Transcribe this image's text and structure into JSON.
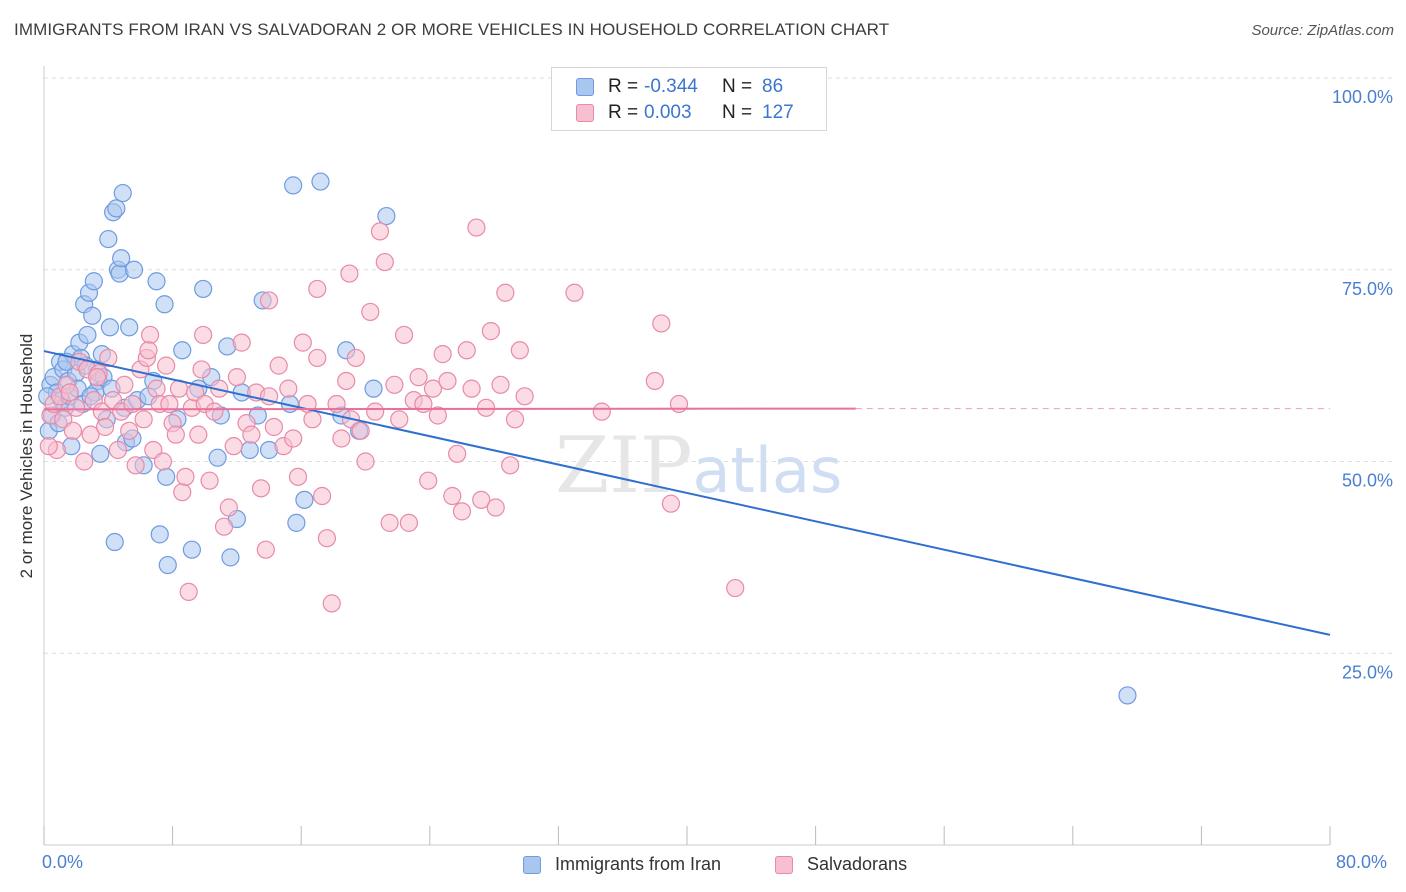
{
  "title": "IMMIGRANTS FROM IRAN VS SALVADORAN 2 OR MORE VEHICLES IN HOUSEHOLD CORRELATION CHART",
  "source": "Source: ZipAtlas.com",
  "watermark": "ZIPatlas",
  "legend_top": {
    "rows": [
      {
        "r_label": "R =",
        "r_value": "-0.344",
        "n_label": "N =",
        "n_value": "86",
        "color": "#a9c6ef",
        "border": "#6f9be0"
      },
      {
        "r_label": "R =",
        "r_value": "0.003",
        "n_label": "N =",
        "n_value": "127",
        "color": "#f7bfd0",
        "border": "#e88aa8"
      }
    ]
  },
  "legend_bottom": [
    {
      "label": "Immigrants from Iran",
      "color": "#a9c6ef",
      "border": "#6f9be0"
    },
    {
      "label": "Salvadorans",
      "color": "#f7bfd0",
      "border": "#e88aa8"
    }
  ],
  "chart_data": {
    "type": "scatter",
    "title": "IMMIGRANTS FROM IRAN VS SALVADORAN 2 OR MORE VEHICLES IN HOUSEHOLD CORRELATION CHART",
    "xlabel": "",
    "ylabel": "2 or more Vehicles in Household",
    "xlim": [
      0,
      80
    ],
    "ylim": [
      0,
      100
    ],
    "x_tick_labels": [
      "0.0%",
      "80.0%"
    ],
    "y_ticks": [
      25,
      50,
      75,
      100
    ],
    "y_tick_labels": [
      "25.0%",
      "50.0%",
      "75.0%",
      "100.0%"
    ],
    "grid": true,
    "legend_position": "top-center",
    "series": [
      {
        "name": "Immigrants from Iran",
        "color": "#6f9be0",
        "fill": "#a9c6ef",
        "trend": {
          "x": [
            0,
            80
          ],
          "y": [
            64.4,
            27.4
          ],
          "color": "#2f6fd0",
          "dashed_after": null
        },
        "points": [
          [
            0.3,
            54.0
          ],
          [
            0.4,
            60.0
          ],
          [
            0.5,
            56.0
          ],
          [
            0.6,
            61.0
          ],
          [
            0.8,
            59.0
          ],
          [
            1.0,
            63.0
          ],
          [
            1.1,
            58.0
          ],
          [
            1.2,
            62.0
          ],
          [
            1.3,
            57.0
          ],
          [
            1.5,
            60.5
          ],
          [
            1.6,
            58.5
          ],
          [
            1.8,
            64.0
          ],
          [
            2.0,
            61.5
          ],
          [
            2.1,
            59.5
          ],
          [
            2.2,
            65.5
          ],
          [
            2.3,
            63.5
          ],
          [
            2.4,
            57.5
          ],
          [
            2.5,
            70.5
          ],
          [
            2.7,
            66.5
          ],
          [
            2.8,
            72.0
          ],
          [
            3.0,
            69.0
          ],
          [
            3.1,
            73.5
          ],
          [
            3.3,
            62.0
          ],
          [
            3.4,
            60.5
          ],
          [
            3.6,
            64.0
          ],
          [
            3.7,
            61.0
          ],
          [
            3.9,
            55.5
          ],
          [
            4.0,
            79.0
          ],
          [
            4.1,
            67.5
          ],
          [
            4.3,
            82.5
          ],
          [
            4.5,
            83.0
          ],
          [
            4.6,
            75.0
          ],
          [
            4.7,
            74.5
          ],
          [
            4.8,
            76.5
          ],
          [
            4.9,
            85.0
          ],
          [
            5.0,
            57.0
          ],
          [
            5.1,
            52.5
          ],
          [
            5.3,
            67.5
          ],
          [
            5.5,
            53.0
          ],
          [
            5.6,
            75.0
          ],
          [
            6.2,
            49.5
          ],
          [
            6.8,
            60.5
          ],
          [
            7.0,
            73.5
          ],
          [
            7.2,
            40.5
          ],
          [
            7.5,
            70.5
          ],
          [
            7.6,
            48.0
          ],
          [
            7.7,
            36.5
          ],
          [
            8.3,
            55.5
          ],
          [
            8.6,
            64.5
          ],
          [
            9.2,
            38.5
          ],
          [
            9.6,
            59.5
          ],
          [
            9.9,
            72.5
          ],
          [
            10.4,
            61.0
          ],
          [
            10.8,
            50.5
          ],
          [
            11.0,
            56.0
          ],
          [
            11.4,
            65.0
          ],
          [
            11.6,
            37.5
          ],
          [
            12.0,
            42.5
          ],
          [
            12.3,
            59.0
          ],
          [
            12.8,
            51.5
          ],
          [
            13.3,
            56.0
          ],
          [
            13.6,
            71.0
          ],
          [
            14.0,
            51.5
          ],
          [
            15.3,
            57.5
          ],
          [
            15.5,
            86.0
          ],
          [
            15.7,
            42.0
          ],
          [
            16.2,
            45.0
          ],
          [
            17.2,
            86.5
          ],
          [
            18.5,
            56.0
          ],
          [
            18.8,
            64.5
          ],
          [
            19.6,
            54.0
          ],
          [
            20.5,
            59.5
          ],
          [
            21.3,
            82.0
          ],
          [
            67.4,
            19.5
          ],
          [
            0.2,
            58.5
          ],
          [
            1.4,
            63.0
          ],
          [
            0.9,
            55.0
          ],
          [
            3.2,
            59.0
          ],
          [
            2.6,
            62.5
          ],
          [
            1.7,
            52.0
          ],
          [
            4.2,
            59.5
          ],
          [
            5.8,
            58.0
          ],
          [
            6.5,
            58.5
          ],
          [
            4.4,
            39.5
          ],
          [
            3.5,
            51.0
          ],
          [
            2.9,
            58.5
          ]
        ]
      },
      {
        "name": "Salvadorans",
        "color": "#e88aa8",
        "fill": "#f7bfd0",
        "trend": {
          "x": [
            0,
            50.5
          ],
          "y": [
            56.8,
            56.9
          ],
          "color": "#e8709b",
          "dashed_to": 80
        },
        "points": [
          [
            0.4,
            56.0
          ],
          [
            0.6,
            57.5
          ],
          [
            0.8,
            51.5
          ],
          [
            1.0,
            58.5
          ],
          [
            1.2,
            55.5
          ],
          [
            1.4,
            60.0
          ],
          [
            1.6,
            59.0
          ],
          [
            1.8,
            54.0
          ],
          [
            2.0,
            57.0
          ],
          [
            2.2,
            63.0
          ],
          [
            2.5,
            50.0
          ],
          [
            2.7,
            62.0
          ],
          [
            2.9,
            53.5
          ],
          [
            3.1,
            58.0
          ],
          [
            3.4,
            61.5
          ],
          [
            3.6,
            56.5
          ],
          [
            3.8,
            54.5
          ],
          [
            4.0,
            63.5
          ],
          [
            4.3,
            58.0
          ],
          [
            4.6,
            51.5
          ],
          [
            4.8,
            56.5
          ],
          [
            5.0,
            60.0
          ],
          [
            5.3,
            54.0
          ],
          [
            5.5,
            57.5
          ],
          [
            5.7,
            49.5
          ],
          [
            6.0,
            62.0
          ],
          [
            6.2,
            55.5
          ],
          [
            6.4,
            63.5
          ],
          [
            6.6,
            66.5
          ],
          [
            6.8,
            51.5
          ],
          [
            7.0,
            59.5
          ],
          [
            7.2,
            57.5
          ],
          [
            7.4,
            50.0
          ],
          [
            7.6,
            62.5
          ],
          [
            7.8,
            57.5
          ],
          [
            8.0,
            55.0
          ],
          [
            8.2,
            53.5
          ],
          [
            8.4,
            59.5
          ],
          [
            8.6,
            46.0
          ],
          [
            8.8,
            48.0
          ],
          [
            9.0,
            33.0
          ],
          [
            9.2,
            57.0
          ],
          [
            9.4,
            59.0
          ],
          [
            9.6,
            53.5
          ],
          [
            9.8,
            62.0
          ],
          [
            10.0,
            57.5
          ],
          [
            10.3,
            47.5
          ],
          [
            10.6,
            56.5
          ],
          [
            10.9,
            59.5
          ],
          [
            11.2,
            41.5
          ],
          [
            11.5,
            44.0
          ],
          [
            11.8,
            52.0
          ],
          [
            12.0,
            61.0
          ],
          [
            12.3,
            65.5
          ],
          [
            12.6,
            55.0
          ],
          [
            12.9,
            53.5
          ],
          [
            13.2,
            59.0
          ],
          [
            13.5,
            46.5
          ],
          [
            13.8,
            38.5
          ],
          [
            14.0,
            58.5
          ],
          [
            14.3,
            54.5
          ],
          [
            14.6,
            62.5
          ],
          [
            14.9,
            52.0
          ],
          [
            15.2,
            59.5
          ],
          [
            15.5,
            53.0
          ],
          [
            15.8,
            48.0
          ],
          [
            16.1,
            65.5
          ],
          [
            16.4,
            57.5
          ],
          [
            16.7,
            55.5
          ],
          [
            17.0,
            63.5
          ],
          [
            17.3,
            45.5
          ],
          [
            17.6,
            40.0
          ],
          [
            17.9,
            31.5
          ],
          [
            18.2,
            57.5
          ],
          [
            18.5,
            53.0
          ],
          [
            18.8,
            60.5
          ],
          [
            19.1,
            55.5
          ],
          [
            19.4,
            63.5
          ],
          [
            19.7,
            54.0
          ],
          [
            20.0,
            50.0
          ],
          [
            20.3,
            69.5
          ],
          [
            20.6,
            56.5
          ],
          [
            20.9,
            80.0
          ],
          [
            21.2,
            76.0
          ],
          [
            21.5,
            42.0
          ],
          [
            21.8,
            60.0
          ],
          [
            22.1,
            55.5
          ],
          [
            22.4,
            66.5
          ],
          [
            22.7,
            42.0
          ],
          [
            23.0,
            58.0
          ],
          [
            23.3,
            61.0
          ],
          [
            23.6,
            57.5
          ],
          [
            23.9,
            47.5
          ],
          [
            24.2,
            59.5
          ],
          [
            24.5,
            56.0
          ],
          [
            24.8,
            64.0
          ],
          [
            25.1,
            60.5
          ],
          [
            25.4,
            45.5
          ],
          [
            25.7,
            51.0
          ],
          [
            26.0,
            43.5
          ],
          [
            26.3,
            64.5
          ],
          [
            26.6,
            59.5
          ],
          [
            26.9,
            80.5
          ],
          [
            27.2,
            45.0
          ],
          [
            27.5,
            57.0
          ],
          [
            27.8,
            67.0
          ],
          [
            28.1,
            44.0
          ],
          [
            28.4,
            60.0
          ],
          [
            28.7,
            72.0
          ],
          [
            29.0,
            49.5
          ],
          [
            29.3,
            55.5
          ],
          [
            29.6,
            64.5
          ],
          [
            29.9,
            58.5
          ],
          [
            33.0,
            72.0
          ],
          [
            34.7,
            56.5
          ],
          [
            38.0,
            60.5
          ],
          [
            38.4,
            68.0
          ],
          [
            39.0,
            44.5
          ],
          [
            39.5,
            57.5
          ],
          [
            43.0,
            33.5
          ],
          [
            17.0,
            72.5
          ],
          [
            19.0,
            74.5
          ],
          [
            14.0,
            71.0
          ],
          [
            6.5,
            64.5
          ],
          [
            3.3,
            61.0
          ],
          [
            9.9,
            66.5
          ],
          [
            0.3,
            52.0
          ]
        ]
      }
    ]
  }
}
